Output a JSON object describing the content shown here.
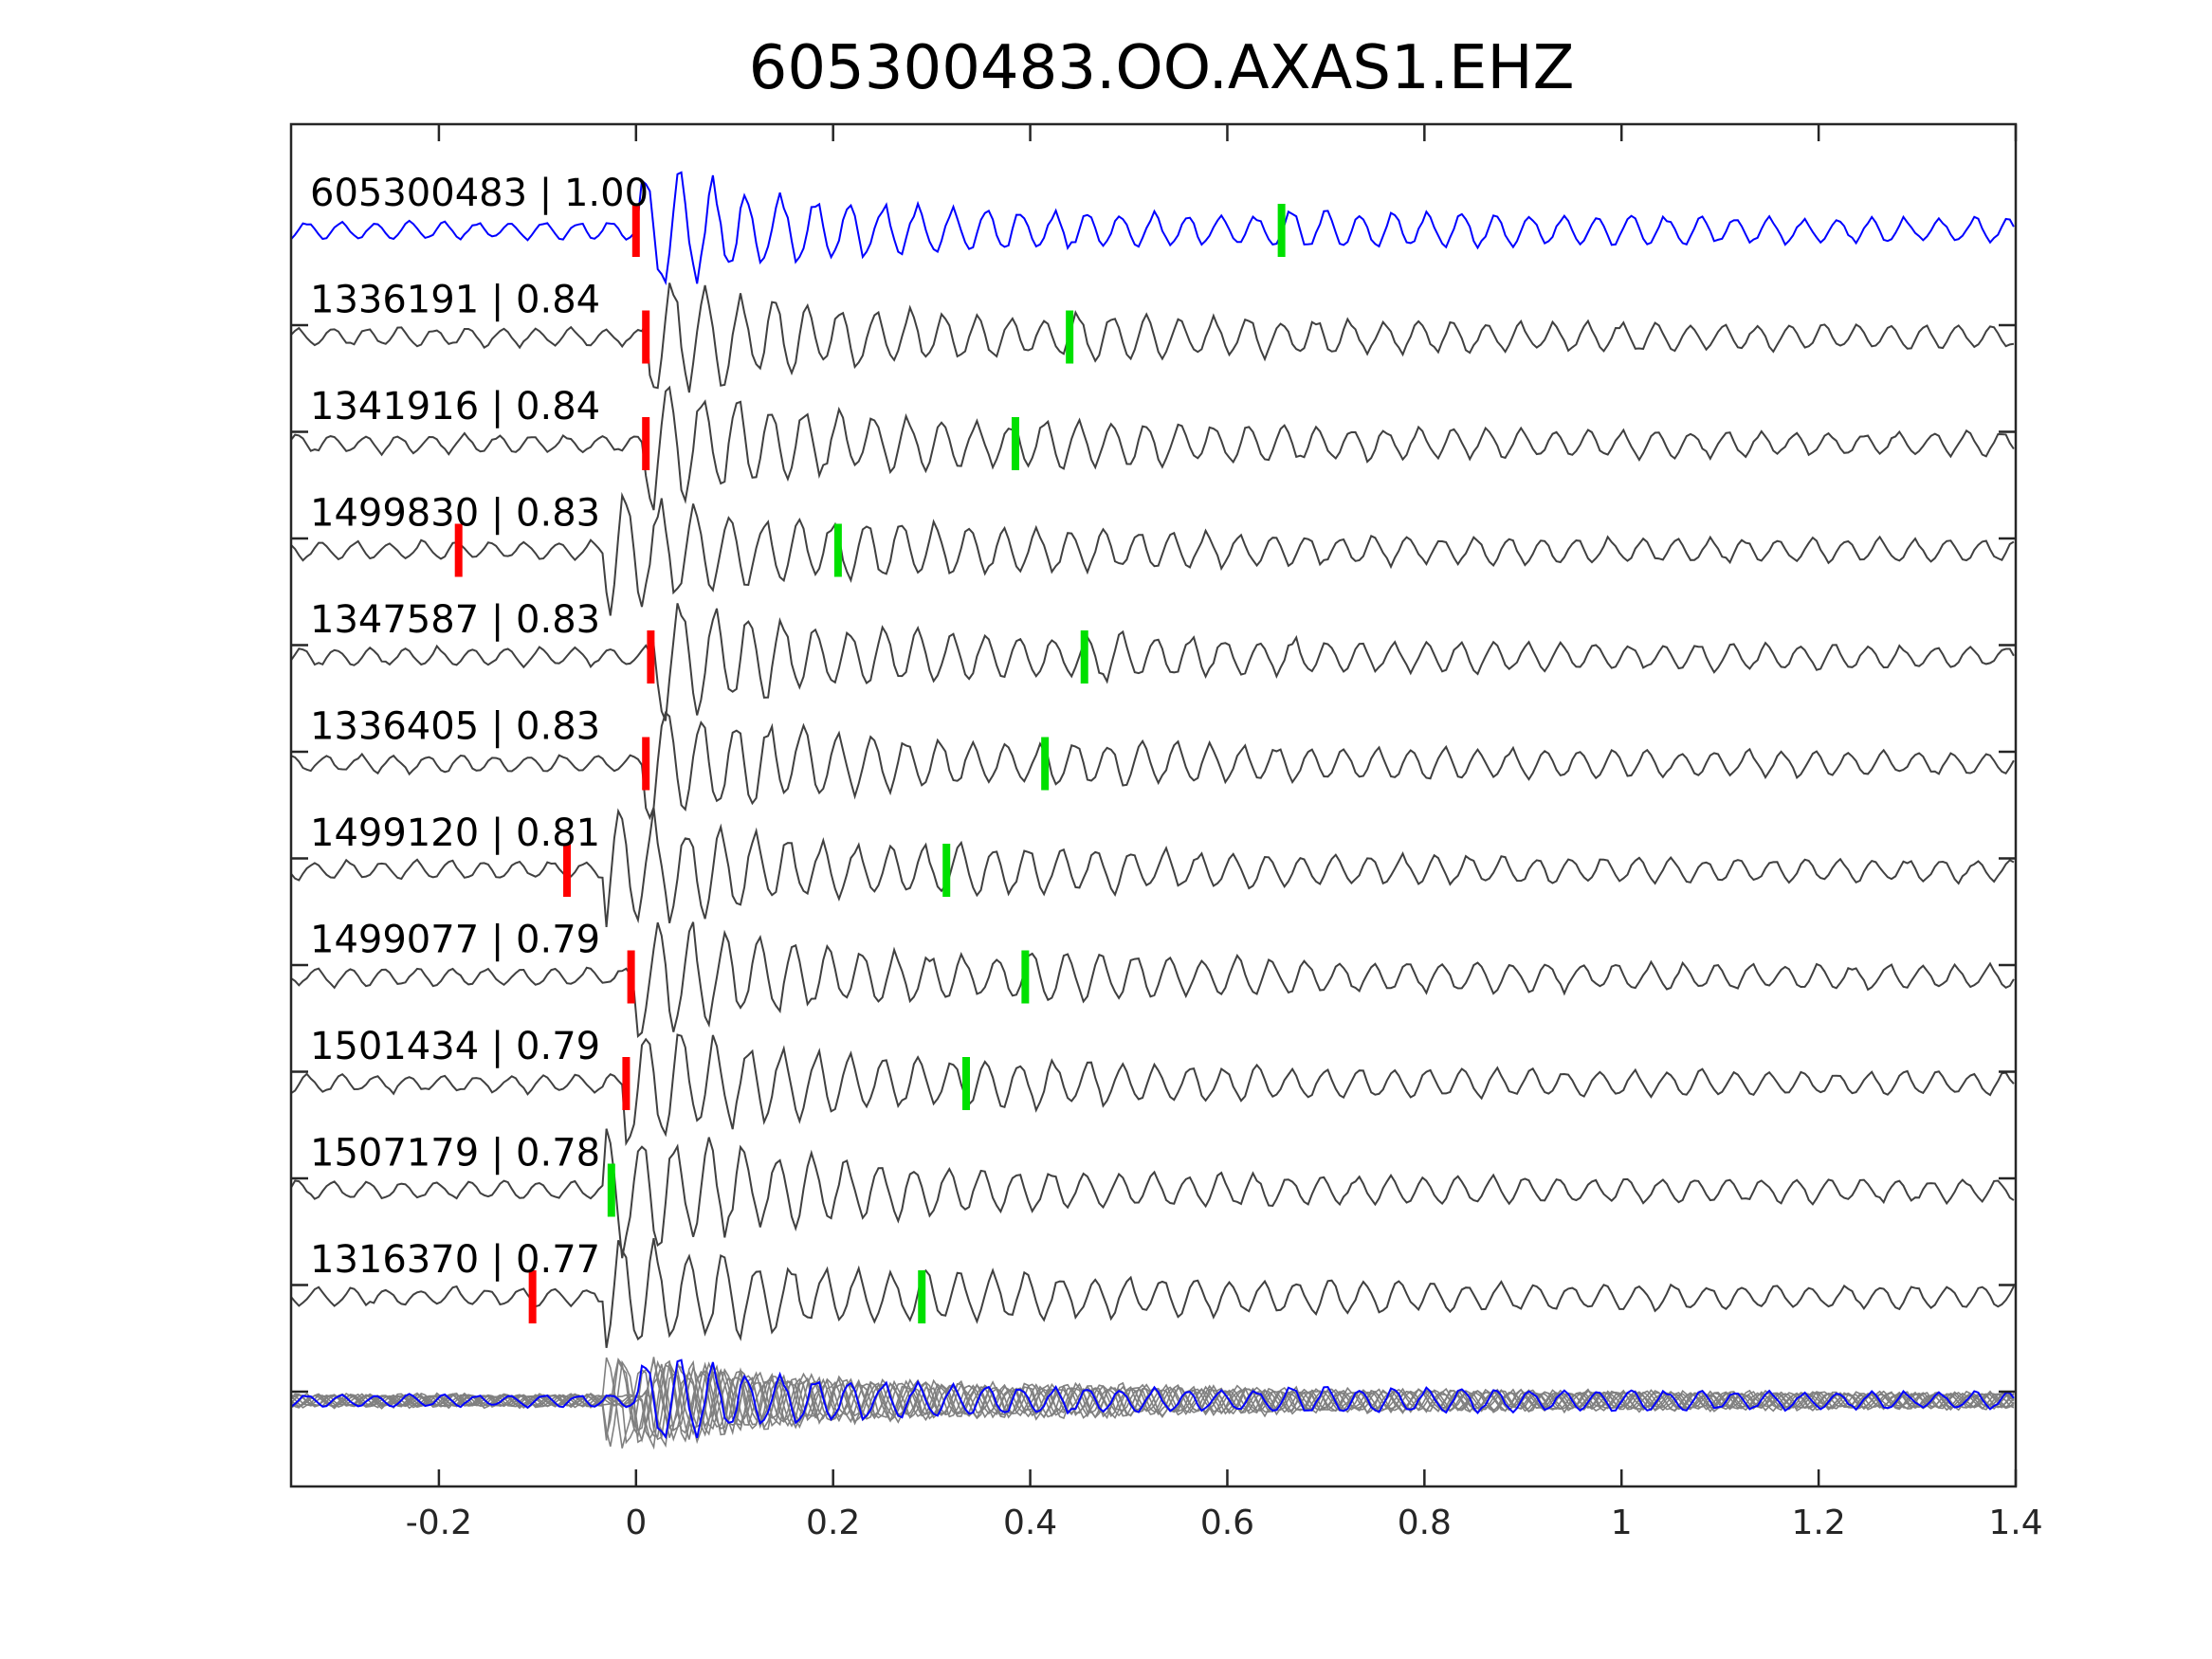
{
  "chart_data": {
    "type": "line",
    "title": "605300483.OO.AXAS1.EHZ",
    "xlabel": "",
    "ylabel": "",
    "xlim": [
      -0.35,
      1.4
    ],
    "xticks": [
      -0.2,
      0,
      0.2,
      0.4,
      0.6,
      0.8,
      1,
      1.2,
      1.4
    ],
    "xtick_labels": [
      "-0.2",
      "0",
      "0.2",
      "0.4",
      "0.6",
      "0.8",
      "1",
      "1.2",
      "1.4"
    ],
    "grid": false,
    "colors": {
      "template": "#0000ff",
      "trace": "#404040",
      "stack": "#808080",
      "p_pick": "#ff0000",
      "s_pick": "#00e000",
      "axis": "#262626"
    },
    "series": [
      {
        "label": "605300483 | 1.00",
        "p_pick": 0.0,
        "s_pick": 0.655,
        "template": true
      },
      {
        "label": "1336191 | 0.84",
        "p_pick": 0.01,
        "s_pick": 0.44
      },
      {
        "label": "1341916 | 0.84",
        "p_pick": 0.01,
        "s_pick": 0.385
      },
      {
        "label": "1499830 | 0.83",
        "p_pick": -0.18,
        "s_pick": 0.205
      },
      {
        "label": "1347587 | 0.83",
        "p_pick": 0.015,
        "s_pick": 0.455
      },
      {
        "label": "1336405 | 0.83",
        "p_pick": 0.01,
        "s_pick": 0.415
      },
      {
        "label": "1499120 | 0.81",
        "p_pick": -0.07,
        "s_pick": 0.315
      },
      {
        "label": "1499077 | 0.79",
        "p_pick": -0.005,
        "s_pick": 0.395
      },
      {
        "label": "1501434 | 0.79",
        "p_pick": -0.01,
        "s_pick": 0.335
      },
      {
        "label": "1507179 | 0.78",
        "p_pick": null,
        "s_pick": -0.025
      },
      {
        "label": "1316370 | 0.77",
        "p_pick": -0.105,
        "s_pick": 0.29
      }
    ],
    "stack": {
      "present": true
    }
  }
}
